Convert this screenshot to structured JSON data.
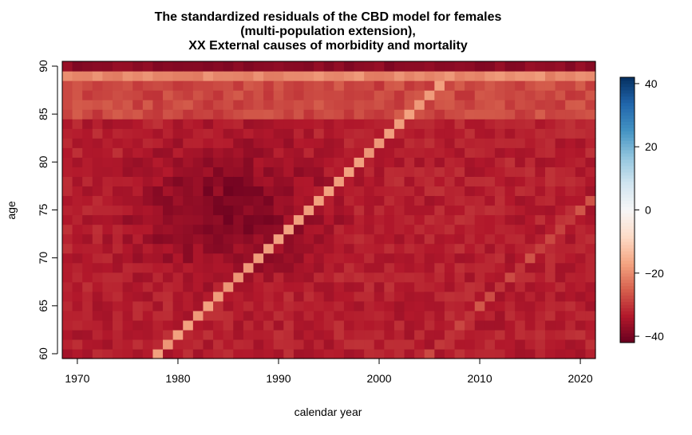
{
  "chart_data": {
    "type": "heatmap",
    "title_lines": [
      "The standardized residuals of the CBD model for females",
      "(multi-population extension),",
      "XX External causes of morbidity and mortality"
    ],
    "xlabel": "calendar year",
    "ylabel": "age",
    "x_range": [
      1969,
      2021
    ],
    "y_range": [
      60,
      90
    ],
    "x_ticks": [
      1970,
      1980,
      1990,
      2000,
      2010,
      2020
    ],
    "y_ticks": [
      60,
      65,
      70,
      75,
      80,
      85,
      90
    ],
    "colorbar": {
      "range": [
        -42,
        42
      ],
      "ticks": [
        40,
        20,
        0,
        -20,
        -40
      ],
      "palette": [
        "#67001f",
        "#b2182b",
        "#d6604d",
        "#f4a582",
        "#fddbc7",
        "#f7f7f7",
        "#d1e5f0",
        "#92c5de",
        "#4393c3",
        "#2166ac",
        "#053061"
      ]
    },
    "residual_pattern": {
      "typical_value": -33,
      "deepest_value": -40,
      "deepest_region": {
        "years": [
          1975,
          1995
        ],
        "ages": [
          70,
          80
        ]
      },
      "top_row_age": 90,
      "top_row_value": -38,
      "age_89_value": -20,
      "cohort_band": {
        "birth_year": 1918,
        "from": [
          1977,
          60
        ],
        "to": [
          2007,
          89
        ],
        "value": -18
      },
      "faint_band": {
        "birth_year": 1945,
        "from": [
          2005,
          60
        ],
        "to": [
          2021,
          76
        ],
        "value": -28
      }
    }
  }
}
